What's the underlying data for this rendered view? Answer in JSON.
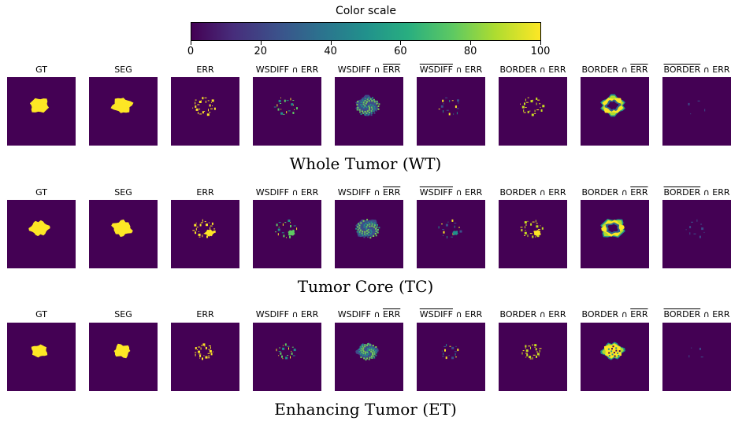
{
  "colorbar": {
    "title": "Color scale",
    "ticks": [
      "0",
      "20",
      "40",
      "60",
      "80",
      "100"
    ],
    "colormap": [
      "#440154",
      "#472d7b",
      "#3b528b",
      "#2c728e",
      "#21918c",
      "#28ae80",
      "#5ec962",
      "#addc30",
      "#fde725"
    ]
  },
  "panel_labels": [
    {
      "pre": "GT",
      "ov": "",
      "post": ""
    },
    {
      "pre": "SEG",
      "ov": "",
      "post": ""
    },
    {
      "pre": "ERR",
      "ov": "",
      "post": ""
    },
    {
      "pre": "WSDIFF ∩ ERR",
      "ov": "",
      "post": ""
    },
    {
      "pre": "WSDIFF ∩ ",
      "ov": "ERR",
      "post": ""
    },
    {
      "pre": "",
      "ov": "WSDIFF",
      "post": " ∩ ERR"
    },
    {
      "pre": "BORDER ∩ ERR",
      "ov": "",
      "post": ""
    },
    {
      "pre": "BORDER ∩ ",
      "ov": "ERR",
      "post": ""
    },
    {
      "pre": "",
      "ov": "BORDER",
      "post": " ∩ ERR"
    }
  ],
  "rows": [
    {
      "title": "Whole Tumor (WT)"
    },
    {
      "title": "Tumor Core (TC)"
    },
    {
      "title": "Enhancing Tumor (ET)"
    }
  ]
}
